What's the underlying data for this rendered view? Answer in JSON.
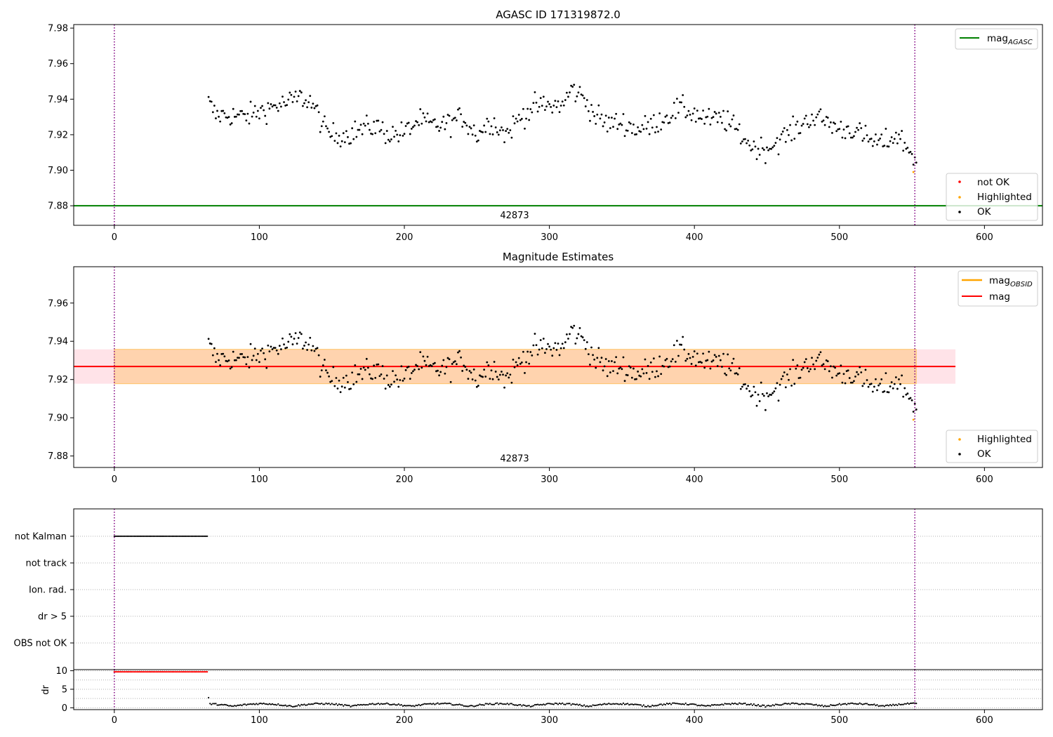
{
  "figure": {
    "background": "#ffffff"
  },
  "colors": {
    "ok": "#000000",
    "not_ok": "#ff0000",
    "highlighted": "#ffa500",
    "mag_agasc": "#008000",
    "mag_obsid": "#ffa500",
    "mag": "#ff0000",
    "mag_band": "#ffc0cb",
    "obs_band": "#ffa500",
    "vline": "#800080",
    "grid": "#b0b0b0"
  },
  "chart_data": [
    {
      "id": "agasc",
      "type": "scatter",
      "title": "AGASC ID 171319872.0",
      "xlim": [
        -28,
        640
      ],
      "ylim": [
        7.869,
        7.982
      ],
      "xticks": [
        0,
        100,
        200,
        300,
        400,
        500,
        600
      ],
      "yticks": [
        7.88,
        7.9,
        7.92,
        7.94,
        7.96,
        7.98
      ],
      "ytick_labels": [
        "7.88",
        "7.90",
        "7.92",
        "7.94",
        "7.96",
        "7.98"
      ],
      "vlines": [
        0,
        552
      ],
      "hlines": [
        {
          "name": "mag_AGASC",
          "y": 7.88,
          "color": "green"
        }
      ],
      "annotation": {
        "text": "42873",
        "x": 276,
        "y": 7.8745
      },
      "legends": [
        {
          "position": "upper-right",
          "entries": [
            {
              "label": "mag",
              "sub": "AGASC",
              "kind": "line",
              "color": "green"
            }
          ]
        },
        {
          "position": "lower-right",
          "entries": [
            {
              "label": "not OK",
              "kind": "point",
              "color": "red"
            },
            {
              "label": "Highlighted",
              "kind": "point",
              "color": "orange"
            },
            {
              "label": "OK",
              "kind": "point",
              "color": "black"
            }
          ]
        }
      ],
      "series": [
        {
          "name": "OK",
          "x_range": [
            65,
            553
          ],
          "trend": "ok_trend"
        },
        {
          "name": "Highlighted",
          "x": [
            551
          ],
          "y": [
            7.899
          ]
        }
      ]
    },
    {
      "id": "mag_est",
      "type": "scatter",
      "title": "Magnitude Estimates",
      "xlim": [
        -28,
        640
      ],
      "ylim": [
        7.874,
        7.979
      ],
      "xticks": [
        0,
        100,
        200,
        300,
        400,
        500,
        600
      ],
      "yticks": [
        7.88,
        7.9,
        7.92,
        7.94,
        7.96
      ],
      "ytick_labels": [
        "7.88",
        "7.90",
        "7.92",
        "7.94",
        "7.96"
      ],
      "vlines": [
        0,
        552
      ],
      "mag": 7.9268,
      "mag_band": [
        7.9178,
        7.9358
      ],
      "obs_mag": 7.9268,
      "obs_band": [
        7.9178,
        7.9358
      ],
      "band_x": [
        -28,
        580
      ],
      "annotation": {
        "text": "42873",
        "x": 276,
        "y": 7.8785
      },
      "legends": [
        {
          "position": "upper-right",
          "entries": [
            {
              "label": "mag",
              "sub": "OBSID",
              "kind": "line",
              "color": "orange"
            },
            {
              "label": "mag",
              "kind": "line",
              "color": "red"
            }
          ]
        },
        {
          "position": "lower-right",
          "entries": [
            {
              "label": "Highlighted",
              "kind": "point",
              "color": "orange"
            },
            {
              "label": "OK",
              "kind": "point",
              "color": "black"
            }
          ]
        }
      ],
      "series": [
        {
          "name": "OK",
          "x_range": [
            65,
            553
          ],
          "trend": "ok_trend"
        },
        {
          "name": "Highlighted",
          "x": [
            551
          ],
          "y": [
            7.899
          ]
        }
      ]
    },
    {
      "id": "flags",
      "type": "scatter",
      "xlim": [
        -28,
        640
      ],
      "categories": [
        "not Kalman",
        "not track",
        "Ion. rad.",
        "dr > 5",
        "OBS not OK"
      ],
      "flag_series": [
        {
          "category": "not Kalman",
          "x_range": [
            0,
            64
          ]
        }
      ],
      "vlines": [
        0,
        552
      ]
    },
    {
      "id": "dr",
      "type": "scatter",
      "xlim": [
        -28,
        640
      ],
      "ylim": [
        -0.5,
        10.3
      ],
      "ylabel": "dr",
      "xticks": [
        0,
        100,
        200,
        300,
        400,
        500,
        600
      ],
      "yticks": [
        0,
        5,
        10
      ],
      "ytick_labels": [
        "0",
        "5",
        "10"
      ],
      "minor_gridlines": [
        2.5,
        7.5
      ],
      "vlines": [
        0,
        552
      ],
      "series": [
        {
          "name": "dr > 5",
          "x_range": [
            0,
            64
          ],
          "y_approx": 9.7,
          "color": "red"
        },
        {
          "name": "dr",
          "x_range": [
            65,
            553
          ],
          "y_approx": [
            0.2,
            1.5
          ],
          "color": "black"
        }
      ]
    }
  ],
  "ok_trend": {
    "x": [
      65,
      70,
      80,
      90,
      100,
      110,
      120,
      128,
      135,
      140,
      145,
      150,
      160,
      170,
      180,
      190,
      200,
      210,
      220,
      230,
      240,
      250,
      260,
      270,
      280,
      290,
      300,
      310,
      315,
      320,
      325,
      330,
      340,
      350,
      360,
      370,
      380,
      390,
      400,
      410,
      420,
      430,
      440,
      450,
      460,
      470,
      480,
      490,
      500,
      510,
      520,
      530,
      540,
      550,
      553
    ],
    "y": [
      7.938,
      7.931,
      7.931,
      7.93,
      7.933,
      7.936,
      7.938,
      7.941,
      7.939,
      7.932,
      7.923,
      7.92,
      7.92,
      7.923,
      7.925,
      7.92,
      7.921,
      7.928,
      7.925,
      7.926,
      7.93,
      7.92,
      7.928,
      7.92,
      7.93,
      7.936,
      7.936,
      7.937,
      7.946,
      7.943,
      7.94,
      7.932,
      7.926,
      7.927,
      7.923,
      7.925,
      7.93,
      7.935,
      7.932,
      7.928,
      7.929,
      7.922,
      7.913,
      7.912,
      7.918,
      7.923,
      7.93,
      7.928,
      7.923,
      7.923,
      7.917,
      7.915,
      7.92,
      7.909,
      7.906
    ]
  }
}
